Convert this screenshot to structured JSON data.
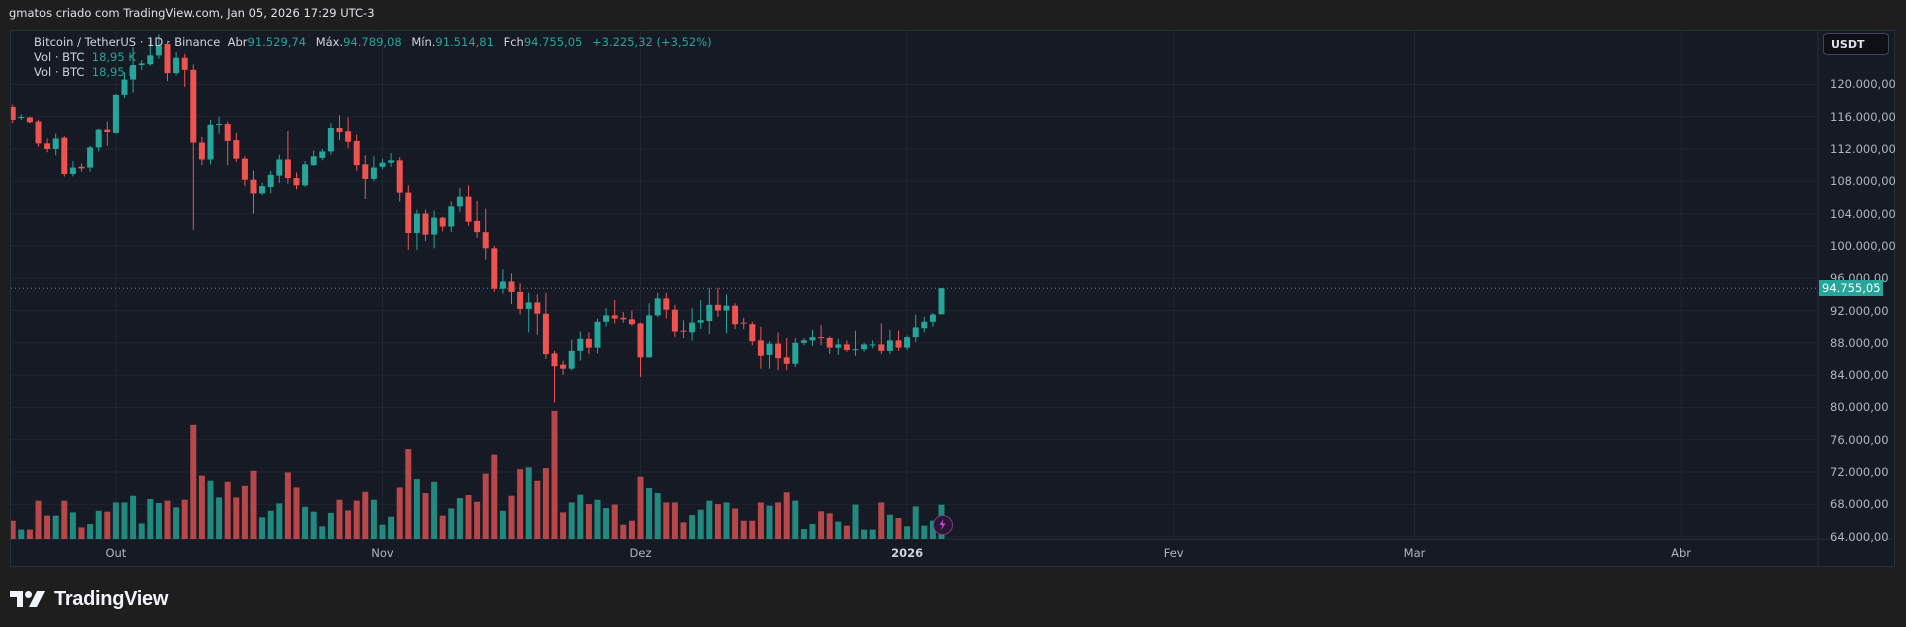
{
  "header": {
    "credit": "gmatos criado com TradingView.com, Jan 05, 2026 17:29 UTC-3"
  },
  "legend": {
    "symbol": "Bitcoin / TetherUS · 1D · Binance",
    "open_label": "Abr",
    "open": "91.529,74",
    "high_label": "Máx.",
    "high": "94.789,08",
    "low_label": "Mín.",
    "low": "91.514,81",
    "close_label": "Fch",
    "close": "94.755,05",
    "change": "+3.225,32 (+3,52%)",
    "volume_rows": [
      {
        "label": "Vol · BTC",
        "value": "18,95 K"
      },
      {
        "label": "Vol · BTC",
        "value": "18,95 K"
      }
    ]
  },
  "currency_button": "USDT",
  "colors": {
    "up": "#26a69a",
    "down": "#ef5350",
    "up_volume": "#22897e",
    "down_volume": "#b8474a",
    "background": "#161a25",
    "grid": "#212532"
  },
  "icons": {
    "alert": "lightning-bolt-icon",
    "logo": "tradingview-logo-icon"
  },
  "brand": "TradingView",
  "chart_data": {
    "type": "candlestick",
    "title": "Bitcoin / TetherUS · 1D · Binance",
    "interval": "1D",
    "currency": "USDT",
    "last_price": "94.755,05",
    "ylim": [
      64000,
      124000
    ],
    "y_ticks": [
      "120.000,00",
      "116.000,00",
      "112.000,00",
      "108.000,00",
      "104.000,00",
      "100.000,00",
      "96.000,00",
      "92.000,00",
      "88.000,00",
      "84.000,00",
      "80.000,00",
      "76.000,00",
      "72.000,00",
      "68.000,00",
      "64.000,00"
    ],
    "x_ticks": [
      {
        "label": "Out",
        "date": "2025-10-01"
      },
      {
        "label": "Nov",
        "date": "2025-11-01"
      },
      {
        "label": "Dez",
        "date": "2025-12-01"
      },
      {
        "label": "2026",
        "date": "2026-01-01",
        "bold": true
      },
      {
        "label": "Fev",
        "date": "2026-02-01"
      },
      {
        "label": "Mar",
        "date": "2026-03-01"
      },
      {
        "label": "Abr",
        "date": "2026-04-01"
      }
    ],
    "grid": true,
    "columns": [
      "date",
      "open",
      "high",
      "low",
      "close",
      "volume_k_btc"
    ],
    "candles": [
      [
        "2025-09-19",
        117200,
        117500,
        115200,
        115600,
        10.1
      ],
      [
        "2025-09-20",
        115900,
        116300,
        115600,
        115950,
        5.2
      ],
      [
        "2025-09-21",
        115900,
        116000,
        115200,
        115300,
        5.2
      ],
      [
        "2025-09-22",
        115400,
        115600,
        112300,
        112700,
        21.2
      ],
      [
        "2025-09-23",
        112700,
        113300,
        111600,
        112000,
        12.9
      ],
      [
        "2025-09-24",
        112000,
        113900,
        111200,
        113300,
        12.9
      ],
      [
        "2025-09-25",
        113400,
        113600,
        108600,
        108900,
        21.2
      ],
      [
        "2025-09-26",
        108900,
        110500,
        108600,
        109700,
        14.7
      ],
      [
        "2025-09-27",
        109800,
        110200,
        109200,
        109600,
        6.4
      ],
      [
        "2025-09-28",
        109700,
        112400,
        109200,
        112200,
        8.3
      ],
      [
        "2025-09-29",
        112200,
        114500,
        111700,
        114400,
        15.6
      ],
      [
        "2025-09-30",
        114400,
        115400,
        112400,
        114100,
        15.1
      ],
      [
        "2025-10-01",
        114000,
        118800,
        113900,
        118700,
        20.2
      ],
      [
        "2025-10-02",
        118700,
        121500,
        118300,
        120600,
        20.2
      ],
      [
        "2025-10-03",
        120600,
        124600,
        119000,
        122400,
        23.9
      ],
      [
        "2025-10-04",
        122400,
        123000,
        121800,
        122600,
        8.6
      ],
      [
        "2025-10-05",
        122500,
        125500,
        122300,
        123600,
        22.1
      ],
      [
        "2025-10-06",
        123600,
        126200,
        123200,
        124800,
        19.9
      ],
      [
        "2025-10-07",
        125000,
        125400,
        120400,
        121400,
        21.2
      ],
      [
        "2025-10-08",
        121400,
        124000,
        121100,
        123300,
        17.5
      ],
      [
        "2025-10-09",
        123300,
        123800,
        119700,
        121800,
        21.7
      ],
      [
        "2025-10-10",
        121800,
        122500,
        102000,
        112800,
        63.1
      ],
      [
        "2025-10-11",
        112800,
        113500,
        110000,
        110700,
        35.0
      ],
      [
        "2025-10-12",
        110700,
        115600,
        110100,
        115000,
        32.2
      ],
      [
        "2025-10-13",
        115000,
        116000,
        113900,
        115100,
        23.0
      ],
      [
        "2025-10-14",
        115100,
        115400,
        110000,
        113000,
        31.6
      ],
      [
        "2025-10-15",
        113100,
        114000,
        110400,
        110800,
        23.0
      ],
      [
        "2025-10-16",
        110800,
        111100,
        107400,
        108200,
        29.4
      ],
      [
        "2025-10-17",
        108200,
        109300,
        104000,
        106500,
        37.7
      ],
      [
        "2025-10-18",
        106500,
        107800,
        106300,
        107400,
        12.0
      ],
      [
        "2025-10-19",
        107300,
        109300,
        106500,
        108800,
        15.6
      ],
      [
        "2025-10-20",
        108700,
        111300,
        107800,
        110700,
        19.7
      ],
      [
        "2025-10-21",
        110700,
        114200,
        107700,
        108400,
        36.8
      ],
      [
        "2025-10-22",
        108400,
        109100,
        107000,
        107500,
        28.5
      ],
      [
        "2025-10-23",
        107500,
        110500,
        107300,
        110100,
        17.8
      ],
      [
        "2025-10-24",
        110000,
        111800,
        109900,
        111100,
        15.1
      ],
      [
        "2025-10-25",
        110900,
        112000,
        110600,
        111700,
        7.0
      ],
      [
        "2025-10-26",
        111700,
        115200,
        111300,
        114600,
        14.4
      ],
      [
        "2025-10-27",
        114600,
        116200,
        113100,
        114100,
        21.7
      ],
      [
        "2025-10-28",
        114200,
        115900,
        112100,
        112900,
        15.8
      ],
      [
        "2025-10-29",
        113000,
        113800,
        109300,
        110000,
        21.2
      ],
      [
        "2025-10-30",
        110100,
        111200,
        105800,
        108300,
        26.1
      ],
      [
        "2025-10-31",
        108300,
        111100,
        108000,
        109700,
        21.7
      ],
      [
        "2025-11-01",
        109800,
        110800,
        109500,
        110300,
        7.9
      ],
      [
        "2025-11-02",
        110300,
        111500,
        109800,
        110600,
        12.3
      ],
      [
        "2025-11-03",
        110600,
        111000,
        105500,
        106600,
        28.5
      ],
      [
        "2025-11-04",
        106600,
        107500,
        99500,
        101600,
        49.7
      ],
      [
        "2025-11-05",
        101600,
        104500,
        99500,
        104000,
        33.1
      ],
      [
        "2025-11-06",
        104000,
        104500,
        100600,
        101400,
        25.4
      ],
      [
        "2025-11-07",
        101400,
        104400,
        99700,
        103500,
        31.6
      ],
      [
        "2025-11-08",
        103500,
        103600,
        101800,
        102400,
        12.9
      ],
      [
        "2025-11-09",
        102400,
        105500,
        101700,
        104900,
        16.9
      ],
      [
        "2025-11-10",
        104900,
        107200,
        104200,
        106100,
        22.6
      ],
      [
        "2025-11-11",
        106100,
        107500,
        102500,
        103000,
        24.3
      ],
      [
        "2025-11-12",
        103100,
        105600,
        101000,
        101700,
        20.6
      ],
      [
        "2025-11-13",
        101700,
        104600,
        98300,
        99700,
        36.1
      ],
      [
        "2025-11-14",
        99700,
        100000,
        94300,
        94700,
        46.6
      ],
      [
        "2025-11-15",
        94700,
        97100,
        94100,
        95600,
        15.6
      ],
      [
        "2025-11-16",
        95600,
        96600,
        92800,
        94300,
        23.9
      ],
      [
        "2025-11-17",
        94300,
        95400,
        91500,
        92200,
        38.6
      ],
      [
        "2025-11-18",
        92200,
        94200,
        89300,
        93000,
        39.6
      ],
      [
        "2025-11-19",
        93000,
        94000,
        89000,
        91600,
        32.2
      ],
      [
        "2025-11-20",
        91600,
        94200,
        86000,
        86600,
        39.2
      ],
      [
        "2025-11-21",
        86700,
        87000,
        80600,
        85100,
        70.8
      ],
      [
        "2025-11-22",
        85300,
        85800,
        84000,
        84800,
        14.7
      ],
      [
        "2025-11-23",
        84800,
        88400,
        84600,
        87000,
        20.2
      ],
      [
        "2025-11-24",
        87000,
        89400,
        85800,
        88500,
        24.5
      ],
      [
        "2025-11-25",
        88500,
        89300,
        86600,
        87400,
        19.3
      ],
      [
        "2025-11-26",
        87400,
        91000,
        86700,
        90600,
        21.7
      ],
      [
        "2025-11-27",
        90600,
        92300,
        90000,
        91400,
        17.1
      ],
      [
        "2025-11-28",
        91400,
        93300,
        90400,
        91000,
        19.0
      ],
      [
        "2025-11-29",
        91100,
        91800,
        90500,
        90900,
        7.9
      ],
      [
        "2025-11-30",
        90900,
        92000,
        90100,
        90300,
        10.1
      ],
      [
        "2025-12-01",
        90400,
        90500,
        83800,
        86200,
        34.4
      ],
      [
        "2025-12-02",
        86200,
        92900,
        86200,
        91400,
        28.2
      ],
      [
        "2025-12-03",
        91400,
        94200,
        91200,
        93500,
        25.4
      ],
      [
        "2025-12-04",
        93500,
        94200,
        91000,
        92100,
        20.2
      ],
      [
        "2025-12-05",
        92100,
        92700,
        88700,
        89400,
        20.2
      ],
      [
        "2025-12-06",
        89500,
        90800,
        88600,
        89400,
        9.2
      ],
      [
        "2025-12-07",
        89300,
        92300,
        88300,
        90500,
        13.2
      ],
      [
        "2025-12-08",
        90500,
        93300,
        89700,
        90800,
        16.2
      ],
      [
        "2025-12-09",
        90700,
        94800,
        89100,
        92700,
        21.2
      ],
      [
        "2025-12-10",
        92700,
        94800,
        91200,
        92000,
        19.3
      ],
      [
        "2025-12-11",
        92000,
        94000,
        89200,
        92600,
        20.2
      ],
      [
        "2025-12-12",
        92600,
        92900,
        89700,
        90300,
        16.9
      ],
      [
        "2025-12-13",
        90500,
        91100,
        89700,
        90400,
        10.1
      ],
      [
        "2025-12-14",
        90300,
        90600,
        87700,
        88200,
        10.1
      ],
      [
        "2025-12-15",
        88300,
        90000,
        84800,
        86400,
        20.2
      ],
      [
        "2025-12-16",
        86500,
        88200,
        84800,
        87900,
        18.4
      ],
      [
        "2025-12-17",
        87900,
        89300,
        84600,
        86100,
        20.2
      ],
      [
        "2025-12-18",
        86200,
        88600,
        84600,
        85400,
        25.8
      ],
      [
        "2025-12-19",
        85400,
        88600,
        85000,
        88000,
        21.2
      ],
      [
        "2025-12-20",
        88000,
        88600,
        87700,
        88300,
        5.5
      ],
      [
        "2025-12-21",
        88300,
        89600,
        87600,
        88700,
        8.3
      ],
      [
        "2025-12-22",
        88700,
        90200,
        87700,
        88600,
        15.3
      ],
      [
        "2025-12-23",
        88600,
        88800,
        86600,
        87400,
        14.2
      ],
      [
        "2025-12-24",
        87400,
        88500,
        86500,
        87800,
        9.6
      ],
      [
        "2025-12-25",
        87800,
        88300,
        86900,
        87100,
        7.4
      ],
      [
        "2025-12-26",
        87100,
        89500,
        86400,
        87200,
        19.0
      ],
      [
        "2025-12-27",
        87200,
        88000,
        86900,
        87800,
        5.2
      ],
      [
        "2025-12-28",
        87700,
        88300,
        87300,
        87800,
        5.2
      ],
      [
        "2025-12-29",
        87800,
        90400,
        86600,
        87000,
        20.2
      ],
      [
        "2025-12-30",
        87000,
        89600,
        86600,
        88300,
        13.4
      ],
      [
        "2025-12-31",
        88300,
        89500,
        87000,
        87400,
        11.6
      ],
      [
        "2026-01-01",
        87400,
        88900,
        87100,
        88700,
        7.0
      ],
      [
        "2026-01-02",
        88700,
        91500,
        88100,
        89900,
        18.0
      ],
      [
        "2026-01-03",
        89800,
        91200,
        89300,
        90600,
        7.4
      ],
      [
        "2026-01-04",
        90600,
        91700,
        90000,
        91500,
        10.1
      ],
      [
        "2026-01-05",
        91529.74,
        94789.08,
        91514.81,
        94755.05,
        18.95
      ]
    ]
  }
}
